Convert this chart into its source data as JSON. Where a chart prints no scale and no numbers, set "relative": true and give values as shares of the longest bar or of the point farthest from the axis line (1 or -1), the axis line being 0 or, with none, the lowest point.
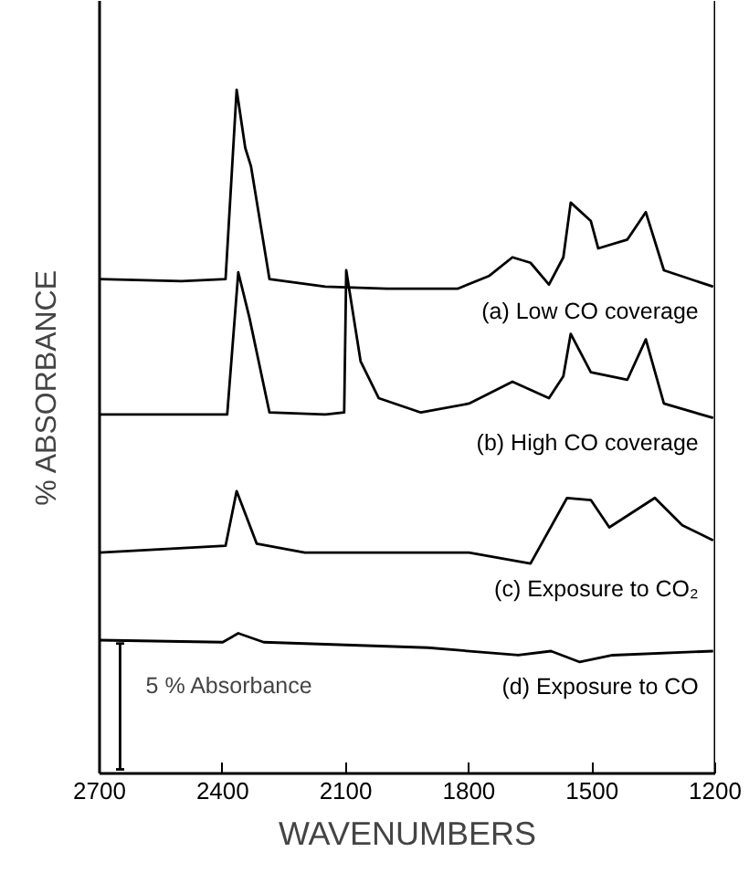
{
  "chart_data": {
    "type": "line",
    "relative": true,
    "xlabel": "WAVENUMBERS",
    "ylabel": "% ABSORBANCE",
    "xlim": [
      2700,
      1200
    ],
    "xticks": [
      2700,
      2400,
      2100,
      1800,
      1500,
      1200
    ],
    "marker": "none",
    "line_style": "solid",
    "grid": false,
    "annotations": [
      "5 % Absorbance"
    ],
    "series": [
      {
        "name": "(a) Low CO coverage",
        "color": "#000000",
        "x": [
          2700,
          2500,
          2393,
          2366,
          2345,
          2331,
          2286,
          2150,
          2000,
          1828,
          1750,
          1694,
          1650,
          1605,
          1570,
          1552,
          1503,
          1485,
          1414,
          1369,
          1325,
          1205
        ],
        "values": [
          0.723,
          0.72,
          0.723,
          1.0,
          0.915,
          0.888,
          0.723,
          0.712,
          0.709,
          0.709,
          0.728,
          0.755,
          0.747,
          0.715,
          0.755,
          0.835,
          0.808,
          0.768,
          0.781,
          0.821,
          0.736,
          0.712
        ]
      },
      {
        "name": "(b) High CO coverage",
        "color": "#000000",
        "x": [
          2700,
          2389,
          2362,
          2335,
          2286,
          2150,
          2104,
          2099,
          2064,
          2020,
          1917,
          1800,
          1694,
          1605,
          1570,
          1552,
          1503,
          1414,
          1369,
          1325,
          1205
        ],
        "values": [
          0.525,
          0.525,
          0.733,
          0.667,
          0.528,
          0.525,
          0.528,
          0.736,
          0.603,
          0.549,
          0.528,
          0.541,
          0.573,
          0.549,
          0.581,
          0.643,
          0.587,
          0.576,
          0.635,
          0.541,
          0.52
        ]
      },
      {
        "name": "(c) Exposure to CO₂",
        "color": "#000000",
        "x": [
          2700,
          2393,
          2366,
          2317,
          2200,
          1800,
          1650,
          1561,
          1503,
          1458,
          1347,
          1280,
          1205
        ],
        "values": [
          0.323,
          0.333,
          0.413,
          0.336,
          0.323,
          0.323,
          0.307,
          0.403,
          0.4,
          0.36,
          0.403,
          0.363,
          0.341
        ]
      },
      {
        "name": "(d) Exposure to CO",
        "color": "#000000",
        "x": [
          2700,
          2400,
          2362,
          2300,
          1900,
          1680,
          1600,
          1530,
          1450,
          1205
        ],
        "values": [
          0.195,
          0.192,
          0.205,
          0.192,
          0.184,
          0.173,
          0.179,
          0.163,
          0.173,
          0.179
        ]
      },
      {
        "type": "line",
        "color": "#000000",
        "x": [
          2650,
          2650
        ],
        "values": [
          0.006,
          0.19
        ],
        "errors": [
          0,
          0
        ]
      }
    ]
  }
}
